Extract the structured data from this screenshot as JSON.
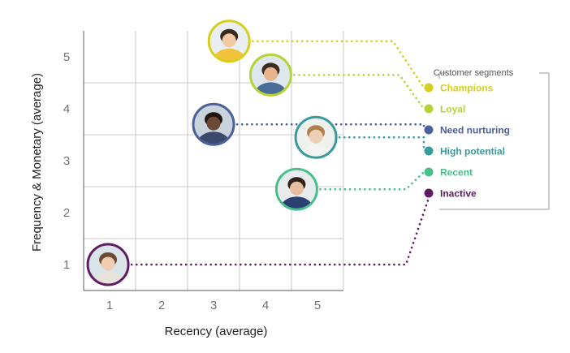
{
  "chart_data": {
    "type": "scatter",
    "title": "",
    "xlabel": "Recency (average)",
    "ylabel": "Frequency & Monetary (average)",
    "xlim": [
      0.5,
      5.5
    ],
    "ylim": [
      0.5,
      5.5
    ],
    "x_ticks": [
      "1",
      "2",
      "3",
      "4",
      "5"
    ],
    "y_ticks": [
      "1",
      "2",
      "3",
      "4",
      "5"
    ],
    "grid": true,
    "legend": {
      "title": "Customer segments",
      "placement": "right"
    },
    "series": [
      {
        "name": "Champions",
        "x": 3.3,
        "y": 5.3,
        "color": "#d6cf1d"
      },
      {
        "name": "Loyal",
        "x": 4.1,
        "y": 4.65,
        "color": "#b5d334"
      },
      {
        "name": "Need nurturing",
        "x": 3.0,
        "y": 3.7,
        "color": "#4c5f99"
      },
      {
        "name": "High potential",
        "x": 4.97,
        "y": 3.45,
        "color": "#3a9a9c"
      },
      {
        "name": "Recent",
        "x": 4.6,
        "y": 2.45,
        "color": "#49c08a"
      },
      {
        "name": "Inactive",
        "x": 0.97,
        "y": 1.0,
        "color": "#5e1d63"
      }
    ]
  }
}
